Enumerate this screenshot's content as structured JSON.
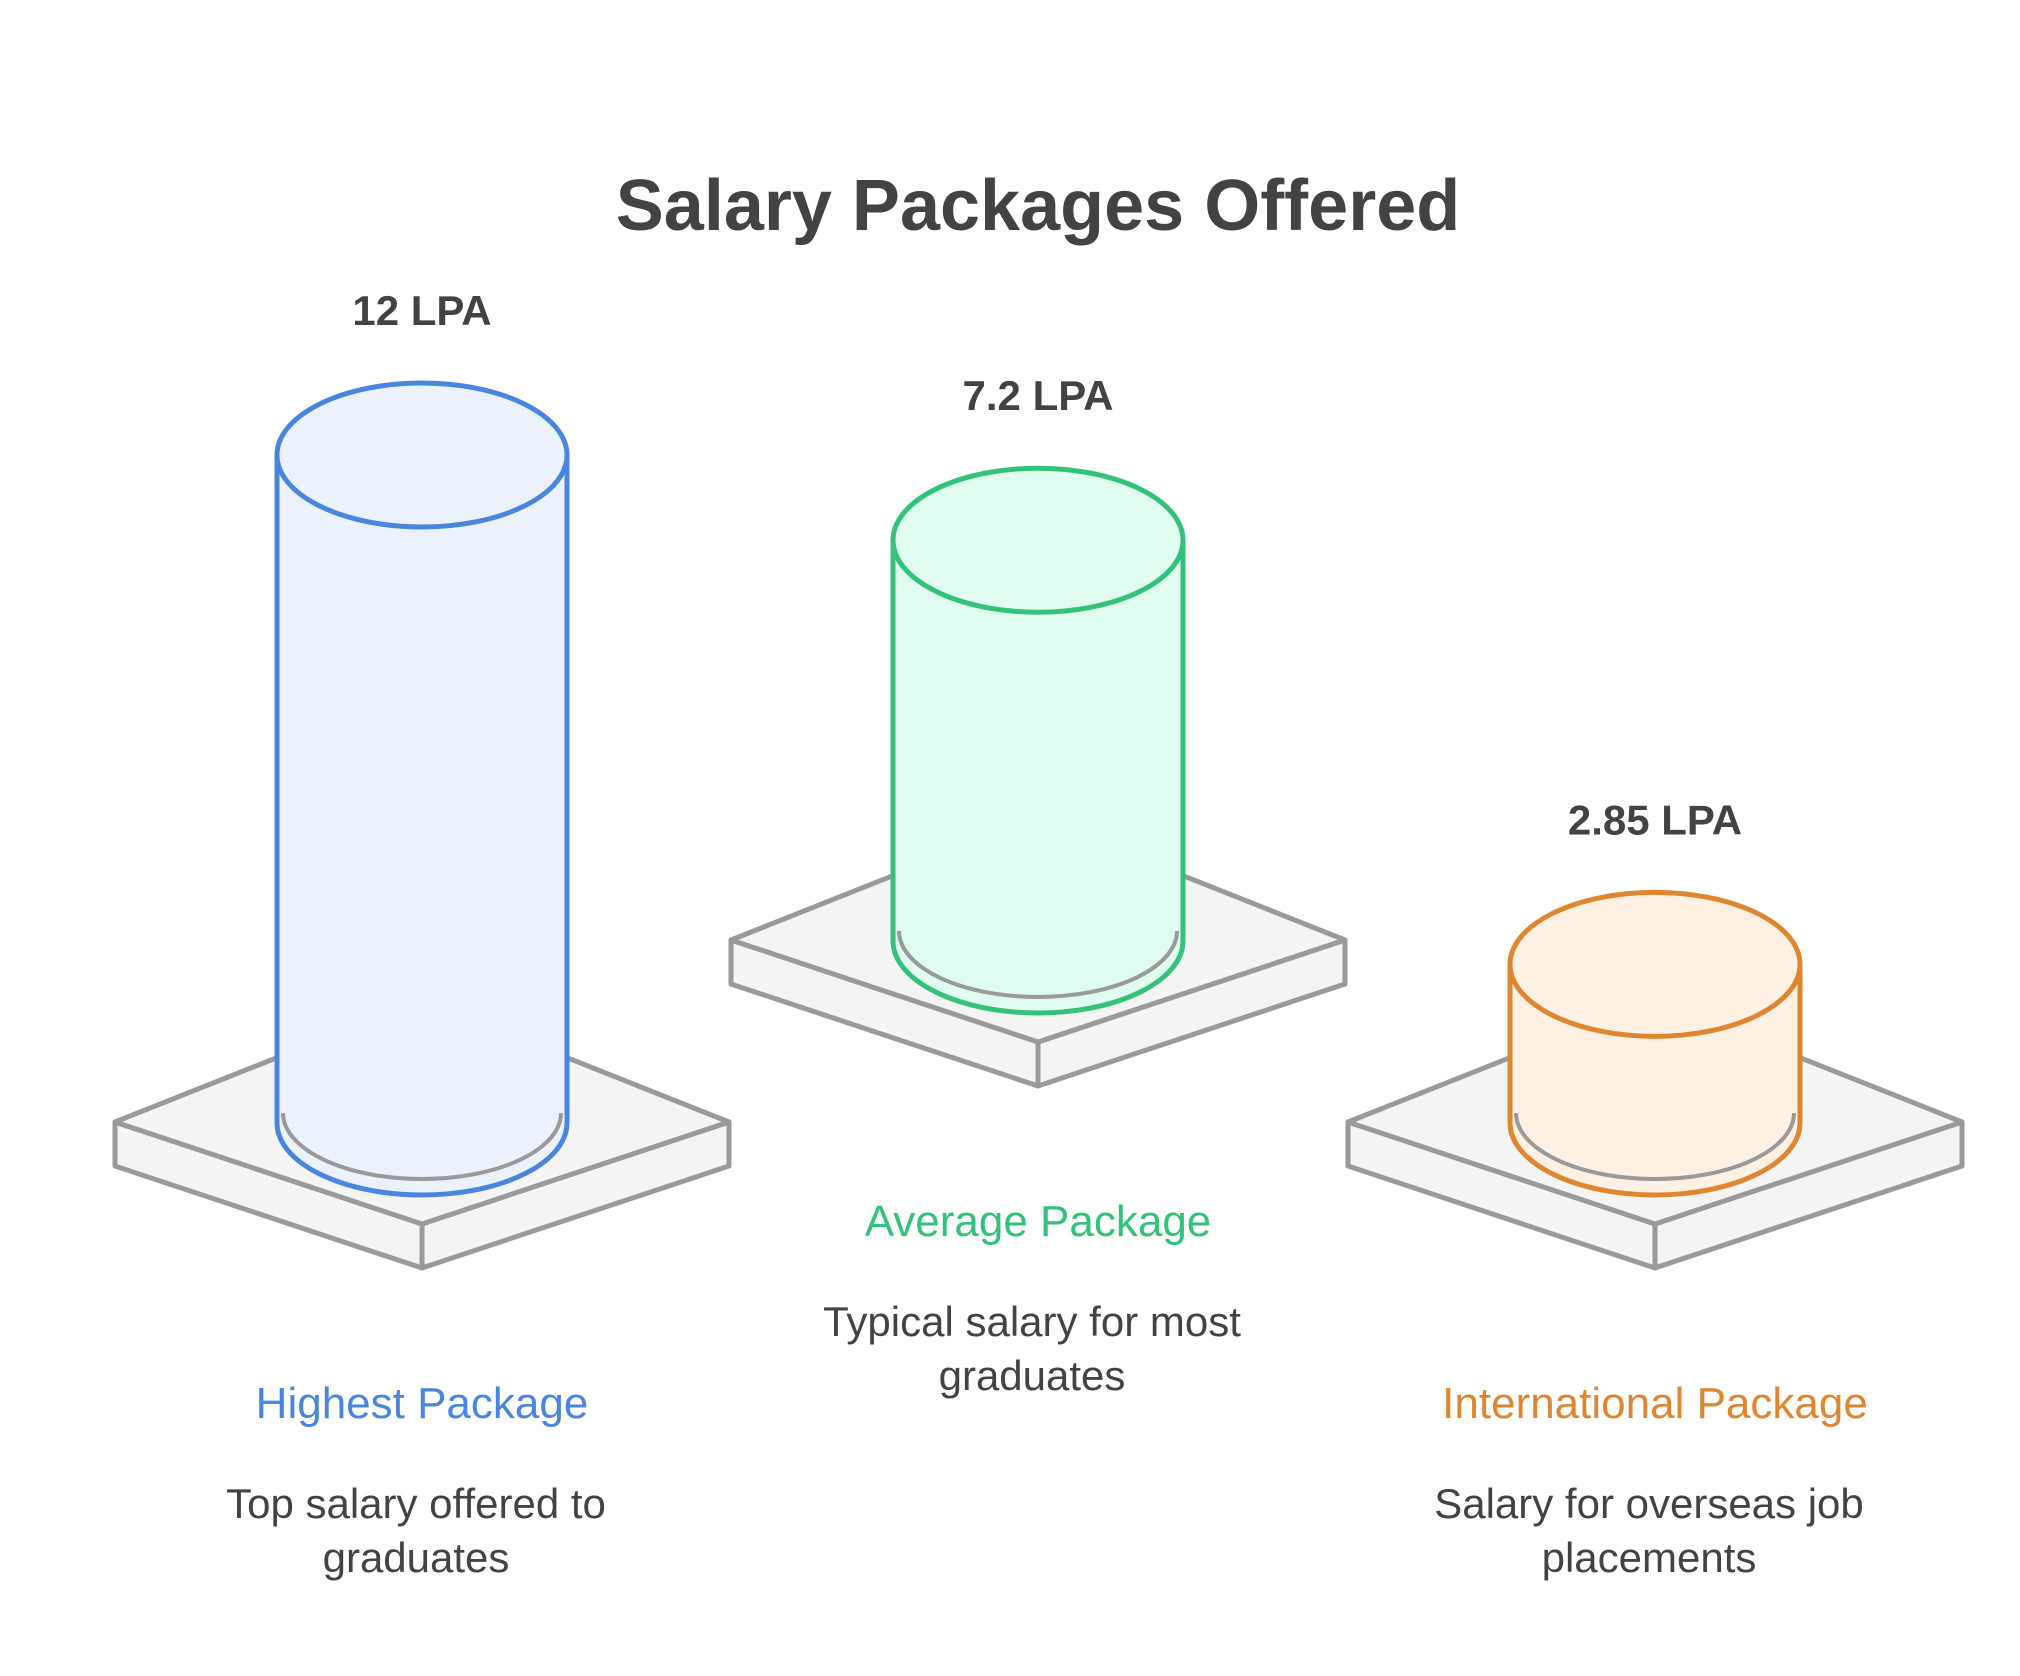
{
  "title": "Salary Packages Offered",
  "chart_data": {
    "type": "bar",
    "title": "Salary Packages Offered",
    "unit": "LPA",
    "categories": [
      "Highest Package",
      "Average Package",
      "International Package"
    ],
    "values": [
      12,
      7.2,
      2.85
    ],
    "value_labels": [
      "12 LPA",
      "7.2 LPA",
      "2.85 LPA"
    ],
    "descriptions": [
      [
        "Top salary offered to",
        "graduates"
      ],
      [
        "Typical salary for most",
        "graduates"
      ],
      [
        "Salary for overseas job",
        "placements"
      ]
    ],
    "colors": {
      "stroke": [
        "#4a86e0",
        "#33c27a",
        "#df8630"
      ],
      "fill": [
        "#ebf2fc",
        "#e0fbef",
        "#fef1e3"
      ]
    },
    "grid": false,
    "legend": "none"
  }
}
